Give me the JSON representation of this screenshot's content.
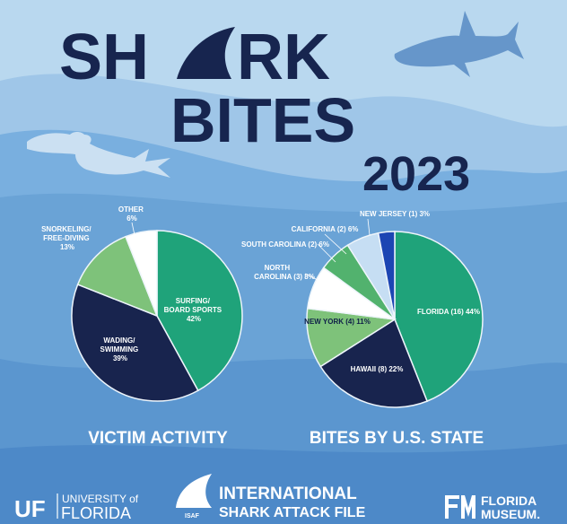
{
  "title": {
    "line1_a": "SH",
    "line1_b": "RK",
    "line2": "BITES",
    "year": "2023"
  },
  "colors": {
    "navy": "#18244e",
    "teal": "#1fa37a",
    "light_green": "#7ec27a",
    "mid_green": "#52b26e",
    "white": "#ffffff",
    "pale_blue": "#c6def3",
    "blue": "#1c45b3",
    "sky": "#b9d8ef",
    "wave": "#6aa3d6",
    "wave_dark": "#4d89c8"
  },
  "chart_data": [
    {
      "type": "pie",
      "title": "VICTIM ACTIVITY",
      "slices": [
        {
          "label_lines": [
            "SURFING/",
            "BOARD SPORTS",
            "42%"
          ],
          "value": 42,
          "color": "#1fa37a"
        },
        {
          "label_lines": [
            "WADING/",
            "SWIMMING",
            "39%"
          ],
          "value": 39,
          "color": "#18244e"
        },
        {
          "label_lines": [
            "SNORKELING/",
            "FREE-DIVING",
            "13%"
          ],
          "value": 13,
          "color": "#7ec27a"
        },
        {
          "label_lines": [
            "OTHER",
            "6%"
          ],
          "value": 6,
          "color": "#ffffff"
        }
      ]
    },
    {
      "type": "pie",
      "title": "BITES BY U.S. STATE",
      "slices": [
        {
          "label_lines": [
            "FLORIDA (16) 44%"
          ],
          "value": 44,
          "color": "#1fa37a"
        },
        {
          "label_lines": [
            "HAWAII (8) 22%"
          ],
          "value": 22,
          "color": "#18244e"
        },
        {
          "label_lines": [
            "NEW YORK (4) 11%"
          ],
          "value": 11,
          "color": "#7ec27a"
        },
        {
          "label_lines": [
            "NORTH",
            "CAROLINA (3) 8%"
          ],
          "value": 8,
          "color": "#ffffff"
        },
        {
          "label_lines": [
            "SOUTH CAROLINA (2) 6%"
          ],
          "value": 6,
          "color": "#52b26e"
        },
        {
          "label_lines": [
            "CALIFORNIA (2) 6%"
          ],
          "value": 6,
          "color": "#c6def3"
        },
        {
          "label_lines": [
            "NEW JERSEY (1) 3%"
          ],
          "value": 3,
          "color": "#1c45b3"
        }
      ]
    }
  ],
  "footer": {
    "uf_short": "UF",
    "uf_line1": "UNIVERSITY of",
    "uf_line2": "FLORIDA",
    "isaf_abbr": "ISAF",
    "isaf_line1": "INTERNATIONAL",
    "isaf_line2": "SHARK ATTACK FILE",
    "museum_line1": "FLORIDA",
    "museum_line2": "MUSEUM."
  }
}
